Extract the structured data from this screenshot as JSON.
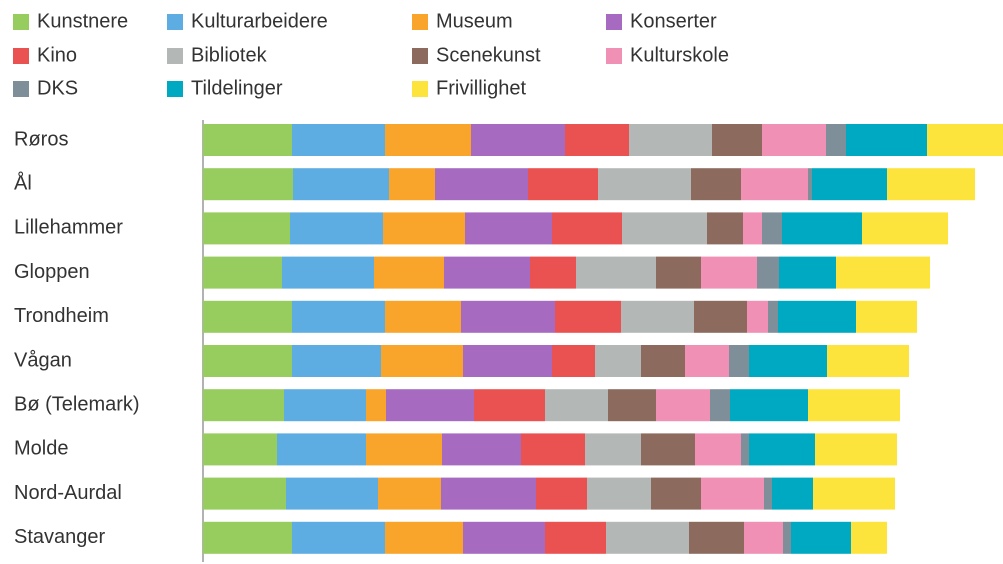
{
  "chart_data": {
    "type": "stacked-bar-horizontal",
    "categories": [
      "Røros",
      "Ål",
      "Lillehammer",
      "Gloppen",
      "Trondheim",
      "Vågan",
      "Bø (Telemark)",
      "Molde",
      "Nord-Aurdal",
      "Stavanger"
    ],
    "xlim": [
      0,
      800
    ],
    "series": [
      {
        "name": "Kunstnere",
        "color": "#97cc5f",
        "values": [
          89,
          90,
          87,
          79,
          89,
          89,
          81,
          74,
          83,
          89
        ]
      },
      {
        "name": "Kulturarbeidere",
        "color": "#5dade2",
        "values": [
          93,
          96,
          93,
          92,
          93,
          89,
          82,
          89,
          92,
          93
        ]
      },
      {
        "name": "Museum",
        "color": "#f9a52b",
        "values": [
          86,
          46,
          82,
          70,
          76,
          82,
          20,
          76,
          63,
          78
        ]
      },
      {
        "name": "Konserter",
        "color": "#a66bc0",
        "values": [
          94,
          93,
          87,
          86,
          94,
          89,
          88,
          79,
          95,
          82
        ]
      },
      {
        "name": "Kino",
        "color": "#ea5252",
        "values": [
          64,
          70,
          70,
          46,
          66,
          43,
          71,
          64,
          51,
          61
        ]
      },
      {
        "name": "Bibliotek",
        "color": "#b3b8b6",
        "values": [
          83,
          93,
          85,
          80,
          73,
          46,
          63,
          56,
          64,
          83
        ]
      },
      {
        "name": "Scenekunst",
        "color": "#8c6b5e",
        "values": [
          50,
          50,
          36,
          45,
          53,
          44,
          48,
          54,
          50,
          55
        ]
      },
      {
        "name": "Kulturskole",
        "color": "#f090b4",
        "values": [
          64,
          67,
          19,
          56,
          21,
          44,
          54,
          46,
          63,
          39
        ]
      },
      {
        "name": "DKS",
        "color": "#7f8f9a",
        "values": [
          20,
          4,
          20,
          22,
          10,
          20,
          20,
          8,
          8,
          8
        ]
      },
      {
        "name": "Tildelinger",
        "color": "#00a9c2",
        "values": [
          81,
          75,
          80,
          57,
          78,
          78,
          78,
          66,
          41,
          60
        ]
      },
      {
        "name": "Frivillighet",
        "color": "#fde43c",
        "values": [
          76,
          88,
          86,
          94,
          61,
          82,
          92,
          82,
          82,
          36
        ]
      }
    ]
  }
}
